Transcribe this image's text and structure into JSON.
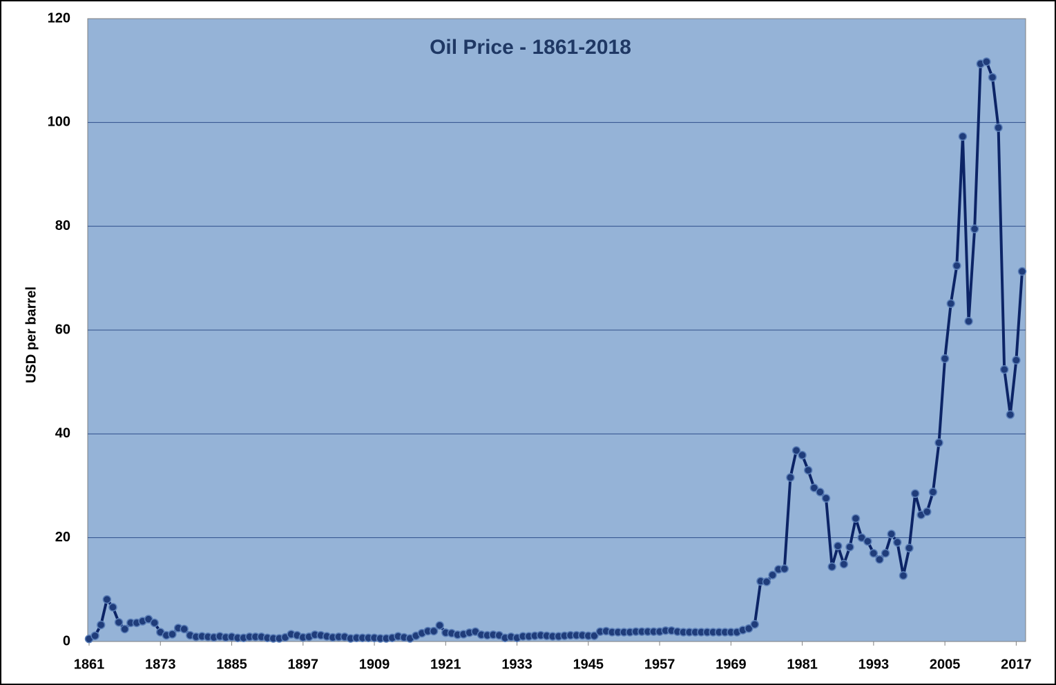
{
  "chart_data": {
    "type": "line",
    "title": "Oil Price - 1861-2018",
    "y_label": "USD per barrel",
    "x": [
      1861,
      1862,
      1863,
      1864,
      1865,
      1866,
      1867,
      1868,
      1869,
      1870,
      1871,
      1872,
      1873,
      1874,
      1875,
      1876,
      1877,
      1878,
      1879,
      1880,
      1881,
      1882,
      1883,
      1884,
      1885,
      1886,
      1887,
      1888,
      1889,
      1890,
      1891,
      1892,
      1893,
      1894,
      1895,
      1896,
      1897,
      1898,
      1899,
      1900,
      1901,
      1902,
      1903,
      1904,
      1905,
      1906,
      1907,
      1908,
      1909,
      1910,
      1911,
      1912,
      1913,
      1914,
      1915,
      1916,
      1917,
      1918,
      1919,
      1920,
      1921,
      1922,
      1923,
      1924,
      1925,
      1926,
      1927,
      1928,
      1929,
      1930,
      1931,
      1932,
      1933,
      1934,
      1935,
      1936,
      1937,
      1938,
      1939,
      1940,
      1941,
      1942,
      1943,
      1944,
      1945,
      1946,
      1947,
      1948,
      1949,
      1950,
      1951,
      1952,
      1953,
      1954,
      1955,
      1956,
      1957,
      1958,
      1959,
      1960,
      1961,
      1962,
      1963,
      1964,
      1965,
      1966,
      1967,
      1968,
      1969,
      1970,
      1971,
      1972,
      1973,
      1974,
      1975,
      1976,
      1977,
      1978,
      1979,
      1980,
      1981,
      1982,
      1983,
      1984,
      1985,
      1986,
      1987,
      1988,
      1989,
      1990,
      1991,
      1992,
      1993,
      1994,
      1995,
      1996,
      1997,
      1998,
      1999,
      2000,
      2001,
      2002,
      2003,
      2004,
      2005,
      2006,
      2007,
      2008,
      2009,
      2010,
      2011,
      2012,
      2013,
      2014,
      2015,
      2016,
      2017,
      2018
    ],
    "series": [
      {
        "name": "Oil price",
        "color": "#0c2466",
        "marker_color": "#1f3c7a",
        "values": [
          0.5,
          1.1,
          3.2,
          8.1,
          6.6,
          3.7,
          2.4,
          3.6,
          3.6,
          3.9,
          4.3,
          3.6,
          1.8,
          1.2,
          1.4,
          2.6,
          2.4,
          1.2,
          0.9,
          1.0,
          0.9,
          0.8,
          1.0,
          0.8,
          0.9,
          0.7,
          0.7,
          0.9,
          0.9,
          0.9,
          0.7,
          0.6,
          0.6,
          0.8,
          1.4,
          1.2,
          0.8,
          0.9,
          1.3,
          1.2,
          1.0,
          0.8,
          0.9,
          0.9,
          0.6,
          0.7,
          0.7,
          0.7,
          0.7,
          0.6,
          0.6,
          0.7,
          1.0,
          0.8,
          0.6,
          1.1,
          1.6,
          2.0,
          2.0,
          3.1,
          1.7,
          1.6,
          1.3,
          1.4,
          1.7,
          1.9,
          1.3,
          1.2,
          1.3,
          1.2,
          0.7,
          0.9,
          0.7,
          1.0,
          1.0,
          1.1,
          1.2,
          1.1,
          1.0,
          1.0,
          1.1,
          1.2,
          1.2,
          1.2,
          1.1,
          1.1,
          1.9,
          2.0,
          1.8,
          1.8,
          1.8,
          1.8,
          1.9,
          1.9,
          1.9,
          1.9,
          1.9,
          2.1,
          2.1,
          1.9,
          1.8,
          1.8,
          1.8,
          1.8,
          1.8,
          1.8,
          1.8,
          1.8,
          1.8,
          1.8,
          2.2,
          2.5,
          3.3,
          11.6,
          11.5,
          12.8,
          13.9,
          14.0,
          31.6,
          36.8,
          35.9,
          33.0,
          29.6,
          28.8,
          27.6,
          14.4,
          18.4,
          14.9,
          18.2,
          23.7,
          20.0,
          19.3,
          17.0,
          15.8,
          17.0,
          20.7,
          19.1,
          12.7,
          18.0,
          28.5,
          24.4,
          25.0,
          28.8,
          38.3,
          54.5,
          65.1,
          72.4,
          97.3,
          61.7,
          79.5,
          111.3,
          111.7,
          108.7,
          99.0,
          52.4,
          43.7,
          54.2,
          71.3
        ]
      }
    ],
    "xlim": [
      1861,
      2018
    ],
    "xticks": [
      1861,
      1873,
      1885,
      1897,
      1909,
      1921,
      1933,
      1945,
      1957,
      1969,
      1981,
      1993,
      2005,
      2017
    ],
    "ylim": [
      0,
      120
    ],
    "yticks": [
      0,
      20,
      40,
      60,
      80,
      100,
      120
    ],
    "grid": true,
    "background": "#95b3d7"
  }
}
